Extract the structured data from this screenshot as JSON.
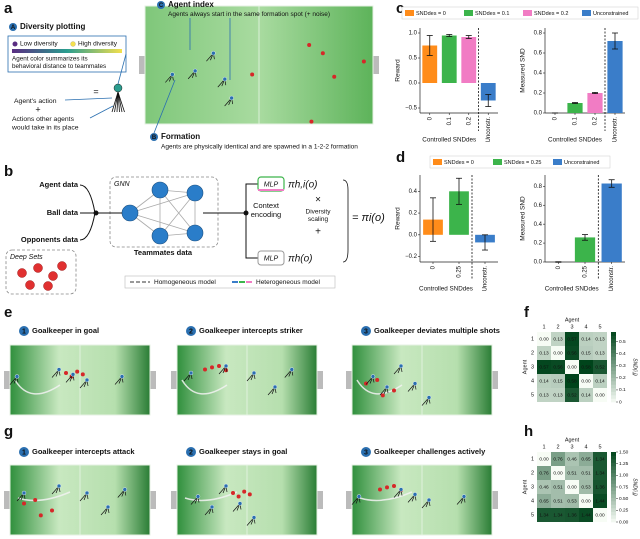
{
  "panel_letters": [
    "a",
    "b",
    "c",
    "d",
    "e",
    "f",
    "g",
    "h"
  ],
  "a": {
    "diversity": {
      "marker": "A",
      "title": "Diversity plotting",
      "low": "Low diversity",
      "high": "High diversity",
      "description": [
        "Agent color summarizes its",
        "behavioral distance to teammates"
      ]
    },
    "equals": "=",
    "action": "Agent's action",
    "plus": "+",
    "others": [
      "Actions other agents",
      "would take in its place"
    ],
    "index": {
      "marker": "C",
      "title": "Agent index",
      "text": "Agents always start in the same formation spot (+ noise)"
    },
    "formation": {
      "marker": "B",
      "title": "Formation",
      "text": "Agents are physically identical and are spawned in a 1-2-2 formation"
    }
  },
  "b": {
    "inputs": [
      "Agent data",
      "Ball data",
      "Opponents data"
    ],
    "gnn": "GNN",
    "deep_sets": "Deep Sets",
    "teammates": "Teammates data",
    "context": [
      "Context",
      "encoding"
    ],
    "mlp_het": "MLP",
    "pi_het": "πh,i(o)",
    "times": "×",
    "scaling": [
      "Diversity",
      "scaling"
    ],
    "plus": "+",
    "result": "= πi(o)",
    "mlp_hom": "MLP",
    "pi_hom": "πh(o)",
    "legend": [
      "Homogeneous model",
      "Heterogeneous model"
    ]
  },
  "chart_data": [
    {
      "type": "bar",
      "ylabel": "Reward",
      "xlabel": "Controlled SNDdes",
      "categories": [
        "0",
        "0.1",
        "0.2",
        "Unconstr."
      ],
      "values": [
        0.75,
        0.95,
        0.92,
        -0.35
      ],
      "errors": [
        0.2,
        0.02,
        0.03,
        0.12
      ],
      "colors": [
        "#ff8c1a",
        "#3cb44b",
        "#f17cc4",
        "#3a7dc9"
      ],
      "legend": [
        {
          "name": "SNDdes = 0",
          "color": "#ff8c1a"
        },
        {
          "name": "SNDdes = 0.1",
          "color": "#3cb44b"
        },
        {
          "name": "SNDdes = 0.2",
          "color": "#f17cc4"
        },
        {
          "name": "Unconstrained",
          "color": "#3a7dc9"
        }
      ],
      "ylim": [
        -0.6,
        1.1
      ],
      "yticks": [
        {
          "value": -0.5,
          "label": "−0.5"
        },
        {
          "value": 0,
          "label": "0.0"
        },
        {
          "value": 0.5,
          "label": "0.5"
        },
        {
          "value": 1,
          "label": "1.0"
        }
      ]
    },
    {
      "type": "bar",
      "ylabel": "Measured SND",
      "xlabel": "Controlled SNDdes",
      "categories": [
        "0",
        "0.1",
        "0.2",
        "Unconstr."
      ],
      "values": [
        0,
        0.1,
        0.2,
        0.72
      ],
      "errors": [
        0,
        0.005,
        0.006,
        0.08
      ],
      "colors": [
        "#ff8c1a",
        "#3cb44b",
        "#f17cc4",
        "#3a7dc9"
      ],
      "ylim": [
        0,
        0.85
      ],
      "yticks": [
        {
          "value": 0,
          "label": "0.0"
        },
        0.2,
        0.4,
        0.6,
        0.8
      ]
    },
    {
      "type": "bar",
      "ylabel": "Reward",
      "xlabel": "Controlled SNDdes",
      "categories": [
        "0",
        "0.25",
        "Unconstr."
      ],
      "values": [
        0.14,
        0.4,
        -0.07
      ],
      "errors": [
        0.2,
        0.12,
        0.07
      ],
      "colors": [
        "#ff8c1a",
        "#3cb44b",
        "#3a7dc9"
      ],
      "legend": [
        {
          "name": "SNDdes = 0",
          "color": "#ff8c1a"
        },
        {
          "name": "SNDdes = 0.25",
          "color": "#3cb44b"
        },
        {
          "name": "Unconstrained",
          "color": "#3a7dc9"
        }
      ],
      "ylim": [
        -0.25,
        0.55
      ],
      "yticks": [
        {
          "value": -0.2,
          "label": "−0.2"
        },
        {
          "value": 0,
          "label": "0.0"
        },
        0.2,
        0.4
      ]
    },
    {
      "type": "bar",
      "ylabel": "Measured SND",
      "xlabel": "Controlled SNDdes",
      "categories": [
        "0",
        "0.25",
        "Unconstr."
      ],
      "values": [
        0,
        0.26,
        0.83
      ],
      "errors": [
        0.003,
        0.03,
        0.04
      ],
      "colors": [
        "#ff8c1a",
        "#3cb44b",
        "#3a7dc9"
      ],
      "ylim": [
        0,
        0.92
      ],
      "yticks": [
        {
          "value": 0,
          "label": "0.0"
        },
        0.2,
        0.4,
        0.6,
        0.8
      ]
    },
    {
      "type": "heatmap",
      "xlabel": "Agent",
      "ylabel": "Agent",
      "colorbar_label": "SND(i,j)",
      "categories": [
        "1",
        "2",
        "3",
        "4",
        "5"
      ],
      "values": [
        [
          0,
          0.13,
          0.57,
          0.14,
          0.13
        ],
        [
          0.13,
          0,
          0.56,
          0.15,
          0.13
        ],
        [
          0.57,
          0.56,
          0,
          0.58,
          0.52
        ],
        [
          0.14,
          0.15,
          0.58,
          0,
          0.14
        ],
        [
          0.13,
          0.13,
          0.52,
          0.14,
          0
        ]
      ],
      "value_labels": [
        [
          "0.00",
          "0.13",
          "0.57",
          "0.14",
          "0.13"
        ],
        [
          "0.13",
          "0.00",
          "0.56",
          "0.15",
          "0.13"
        ],
        [
          "0.57",
          "0.56",
          "0.00",
          "0.58",
          "0.52"
        ],
        [
          "0.14",
          "0.15",
          "0.58",
          "0.00",
          "0.14"
        ],
        [
          "0.13",
          "0.13",
          "0.52",
          "0.14",
          "0.00"
        ]
      ],
      "zlim": [
        0,
        0.58
      ],
      "zticks": [
        0,
        0.1,
        0.2,
        0.3,
        0.4,
        0.5
      ]
    },
    {
      "type": "heatmap",
      "xlabel": "Agent",
      "ylabel": "Agent",
      "colorbar_label": "SND(i,j)",
      "categories": [
        "1",
        "2",
        "3",
        "4",
        "5"
      ],
      "values": [
        [
          0,
          0.76,
          0.46,
          0.65,
          1.34
        ],
        [
          0.76,
          0,
          0.51,
          0.51,
          1.34
        ],
        [
          0.46,
          0.51,
          0,
          0.53,
          1.36
        ],
        [
          0.65,
          0.51,
          0.53,
          0,
          1.44
        ],
        [
          1.34,
          1.34,
          1.36,
          1.44,
          0
        ]
      ],
      "value_labels": [
        [
          "0.00",
          "0.76",
          "0.46",
          "0.65",
          "1.34"
        ],
        [
          "0.76",
          "0.00",
          "0.51",
          "0.51",
          "1.34"
        ],
        [
          "0.46",
          "0.51",
          "0.00",
          "0.53",
          "1.36"
        ],
        [
          "0.65",
          "0.51",
          "0.53",
          "0.00",
          "1.44"
        ],
        [
          "1.34",
          "1.34",
          "1.36",
          "1.44",
          "0.00"
        ]
      ],
      "zlim": [
        0,
        1.5
      ],
      "zticks": [
        {
          "value": 0,
          "label": "0.00"
        },
        0.25,
        {
          "value": 0.5,
          "label": "0.50"
        },
        0.75,
        {
          "value": 1,
          "label": "1.00"
        },
        1.25,
        {
          "value": 1.5,
          "label": "1.50"
        }
      ]
    }
  ],
  "e": {
    "titles": [
      {
        "n": 1,
        "text": "Goalkeeper in goal"
      },
      {
        "n": 2,
        "text": "Goalkeeper intercepts striker"
      },
      {
        "n": 3,
        "text": "Goalkeeper deviates multiple shots"
      }
    ]
  },
  "g": {
    "titles": [
      {
        "n": 1,
        "text": "Goalkeeper intercepts attack"
      },
      {
        "n": 2,
        "text": "Goalkeeper stays in goal"
      },
      {
        "n": 3,
        "text": "Goalkeeper challenges actively"
      }
    ]
  }
}
